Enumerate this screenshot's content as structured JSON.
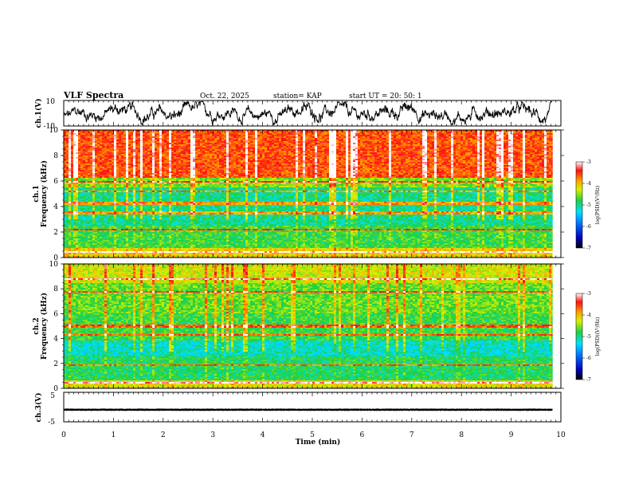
{
  "header": {
    "title": "VLF Spectra",
    "date": "Oct. 22, 2025",
    "station": "station= KAP",
    "start": "start  UT  =   20: 50: 1"
  },
  "colors": {
    "trace": "#000000",
    "axis": "#000000",
    "spec_low": "#00c8ff",
    "spec_mid": "#2bd65a",
    "spec_high": "#ffd400",
    "spec_top": "#ff2020"
  },
  "chart_data": [
    {
      "type": "line",
      "name": "ch1-waveform",
      "ylabel": "ch.1(V)",
      "ylim": [
        -10,
        10
      ],
      "yticks": [
        "10",
        "-10"
      ],
      "xlim": [
        0,
        10
      ],
      "x_extent_min": 9.83,
      "description_values": "noisy voltage trace between about -8 and 8 V"
    },
    {
      "type": "heatmap",
      "name": "ch1-spectrogram",
      "ylabel": "ch.1\nFrequency  (kHz)",
      "ylim": [
        0,
        10
      ],
      "yticks": [
        "0",
        "2",
        "4",
        "6",
        "8",
        "10"
      ],
      "xlim": [
        0,
        10
      ],
      "x_extent_min": 9.83,
      "band_lines_khz": [
        0.45,
        2.2,
        3.5,
        4.25,
        5.2,
        5.9
      ],
      "colorbar": {
        "label": "log(PSD)(V²/Hz)",
        "ticks": [
          "-3",
          "-4",
          "-5",
          "-6",
          "-7"
        ],
        "range": [
          -7,
          -3
        ]
      }
    },
    {
      "type": "heatmap",
      "name": "ch2-spectrogram",
      "ylabel": "ch.2\nFrequency  (kHz)",
      "ylim": [
        0,
        10
      ],
      "yticks": [
        "0",
        "2",
        "4",
        "6",
        "8",
        "10"
      ],
      "xlim": [
        0,
        10
      ],
      "x_extent_min": 9.83,
      "band_lines_khz": [
        0.4,
        1.9,
        4.3,
        5.0,
        7.7,
        8.8
      ],
      "colorbar": {
        "label": "log(PSD)(V²/Hz)",
        "ticks": [
          "-3",
          "-4",
          "-5",
          "-6",
          "-7"
        ],
        "range": [
          -7,
          -3
        ]
      }
    },
    {
      "type": "line",
      "name": "ch3-waveform",
      "ylabel": "ch.3(V)",
      "ylim": [
        -5,
        5
      ],
      "yticks": [
        "5",
        "-5"
      ],
      "xlim": [
        0,
        10
      ],
      "x_extent_min": 9.83,
      "description_values": "saturated dense trace between about -1.3 and -0.5 V"
    }
  ],
  "x_axis": {
    "label": "Time  (min)",
    "ticks": [
      "0",
      "1",
      "2",
      "3",
      "4",
      "5",
      "6",
      "7",
      "8",
      "9",
      "10"
    ]
  }
}
